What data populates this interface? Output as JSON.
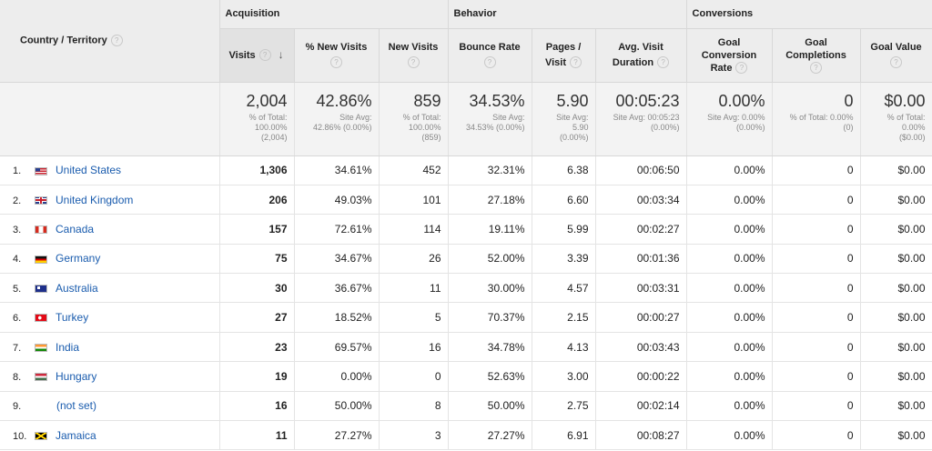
{
  "groups": {
    "acquisition": "Acquisition",
    "behavior": "Behavior",
    "conversions": "Conversions"
  },
  "columns": {
    "country": "Country / Territory",
    "visits": "Visits",
    "pct_new_visits": "% New Visits",
    "new_visits": "New Visits",
    "bounce_rate": "Bounce Rate",
    "pages_visit_1": "Pages /",
    "pages_visit_2": "Visit",
    "avg_duration_1": "Avg. Visit",
    "avg_duration_2": "Duration",
    "goal_conv_1": "Goal",
    "goal_conv_2": "Conversion",
    "goal_conv_3": "Rate",
    "goal_comp_1": "Goal",
    "goal_comp_2": "Completions",
    "goal_value": "Goal Value",
    "help_glyph": "?",
    "sort_glyph": "↓"
  },
  "totals": {
    "visits": {
      "value": "2,004",
      "sub": [
        "% of Total:",
        "100.00%",
        "(2,004)"
      ]
    },
    "pct_new_visits": {
      "value": "42.86%",
      "sub": [
        "Site Avg:",
        "42.86% (0.00%)"
      ]
    },
    "new_visits": {
      "value": "859",
      "sub": [
        "% of Total:",
        "100.00%",
        "(859)"
      ]
    },
    "bounce_rate": {
      "value": "34.53%",
      "sub": [
        "Site Avg:",
        "34.53% (0.00%)"
      ]
    },
    "pages_visit": {
      "value": "5.90",
      "sub": [
        "Site Avg:",
        "5.90",
        "(0.00%)"
      ]
    },
    "avg_duration": {
      "value": "00:05:23",
      "sub": [
        "Site Avg: 00:05:23",
        "(0.00%)"
      ]
    },
    "goal_conv": {
      "value": "0.00%",
      "sub": [
        "Site Avg: 0.00%",
        "(0.00%)"
      ]
    },
    "goal_comp": {
      "value": "0",
      "sub": [
        "% of Total: 0.00%",
        "(0)"
      ]
    },
    "goal_value": {
      "value": "$0.00",
      "sub": [
        "% of Total:",
        "0.00%",
        "($0.00)"
      ]
    }
  },
  "rows": [
    {
      "idx": "1.",
      "flag": "us",
      "country": "United States",
      "visits": "1,306",
      "pct_new": "34.61%",
      "new_visits": "452",
      "bounce": "32.31%",
      "pages": "6.38",
      "duration": "00:06:50",
      "conv": "0.00%",
      "comp": "0",
      "value": "$0.00"
    },
    {
      "idx": "2.",
      "flag": "gb",
      "country": "United Kingdom",
      "visits": "206",
      "pct_new": "49.03%",
      "new_visits": "101",
      "bounce": "27.18%",
      "pages": "6.60",
      "duration": "00:03:34",
      "conv": "0.00%",
      "comp": "0",
      "value": "$0.00"
    },
    {
      "idx": "3.",
      "flag": "ca",
      "country": "Canada",
      "visits": "157",
      "pct_new": "72.61%",
      "new_visits": "114",
      "bounce": "19.11%",
      "pages": "5.99",
      "duration": "00:02:27",
      "conv": "0.00%",
      "comp": "0",
      "value": "$0.00"
    },
    {
      "idx": "4.",
      "flag": "de",
      "country": "Germany",
      "visits": "75",
      "pct_new": "34.67%",
      "new_visits": "26",
      "bounce": "52.00%",
      "pages": "3.39",
      "duration": "00:01:36",
      "conv": "0.00%",
      "comp": "0",
      "value": "$0.00"
    },
    {
      "idx": "5.",
      "flag": "au",
      "country": "Australia",
      "visits": "30",
      "pct_new": "36.67%",
      "new_visits": "11",
      "bounce": "30.00%",
      "pages": "4.57",
      "duration": "00:03:31",
      "conv": "0.00%",
      "comp": "0",
      "value": "$0.00"
    },
    {
      "idx": "6.",
      "flag": "tr",
      "country": "Turkey",
      "visits": "27",
      "pct_new": "18.52%",
      "new_visits": "5",
      "bounce": "70.37%",
      "pages": "2.15",
      "duration": "00:00:27",
      "conv": "0.00%",
      "comp": "0",
      "value": "$0.00"
    },
    {
      "idx": "7.",
      "flag": "in",
      "country": "India",
      "visits": "23",
      "pct_new": "69.57%",
      "new_visits": "16",
      "bounce": "34.78%",
      "pages": "4.13",
      "duration": "00:03:43",
      "conv": "0.00%",
      "comp": "0",
      "value": "$0.00"
    },
    {
      "idx": "8.",
      "flag": "hu",
      "country": "Hungary",
      "visits": "19",
      "pct_new": "0.00%",
      "new_visits": "0",
      "bounce": "52.63%",
      "pages": "3.00",
      "duration": "00:00:22",
      "conv": "0.00%",
      "comp": "0",
      "value": "$0.00"
    },
    {
      "idx": "9.",
      "flag": "",
      "country": "(not set)",
      "visits": "16",
      "pct_new": "50.00%",
      "new_visits": "8",
      "bounce": "50.00%",
      "pages": "2.75",
      "duration": "00:02:14",
      "conv": "0.00%",
      "comp": "0",
      "value": "$0.00"
    },
    {
      "idx": "10.",
      "flag": "jm",
      "country": "Jamaica",
      "visits": "11",
      "pct_new": "27.27%",
      "new_visits": "3",
      "bounce": "27.27%",
      "pages": "6.91",
      "duration": "00:08:27",
      "conv": "0.00%",
      "comp": "0",
      "value": "$0.00"
    }
  ],
  "colors": {
    "link": "#1a5cae",
    "header_bg": "#ededed",
    "totals_bg": "#f3f3f3"
  }
}
